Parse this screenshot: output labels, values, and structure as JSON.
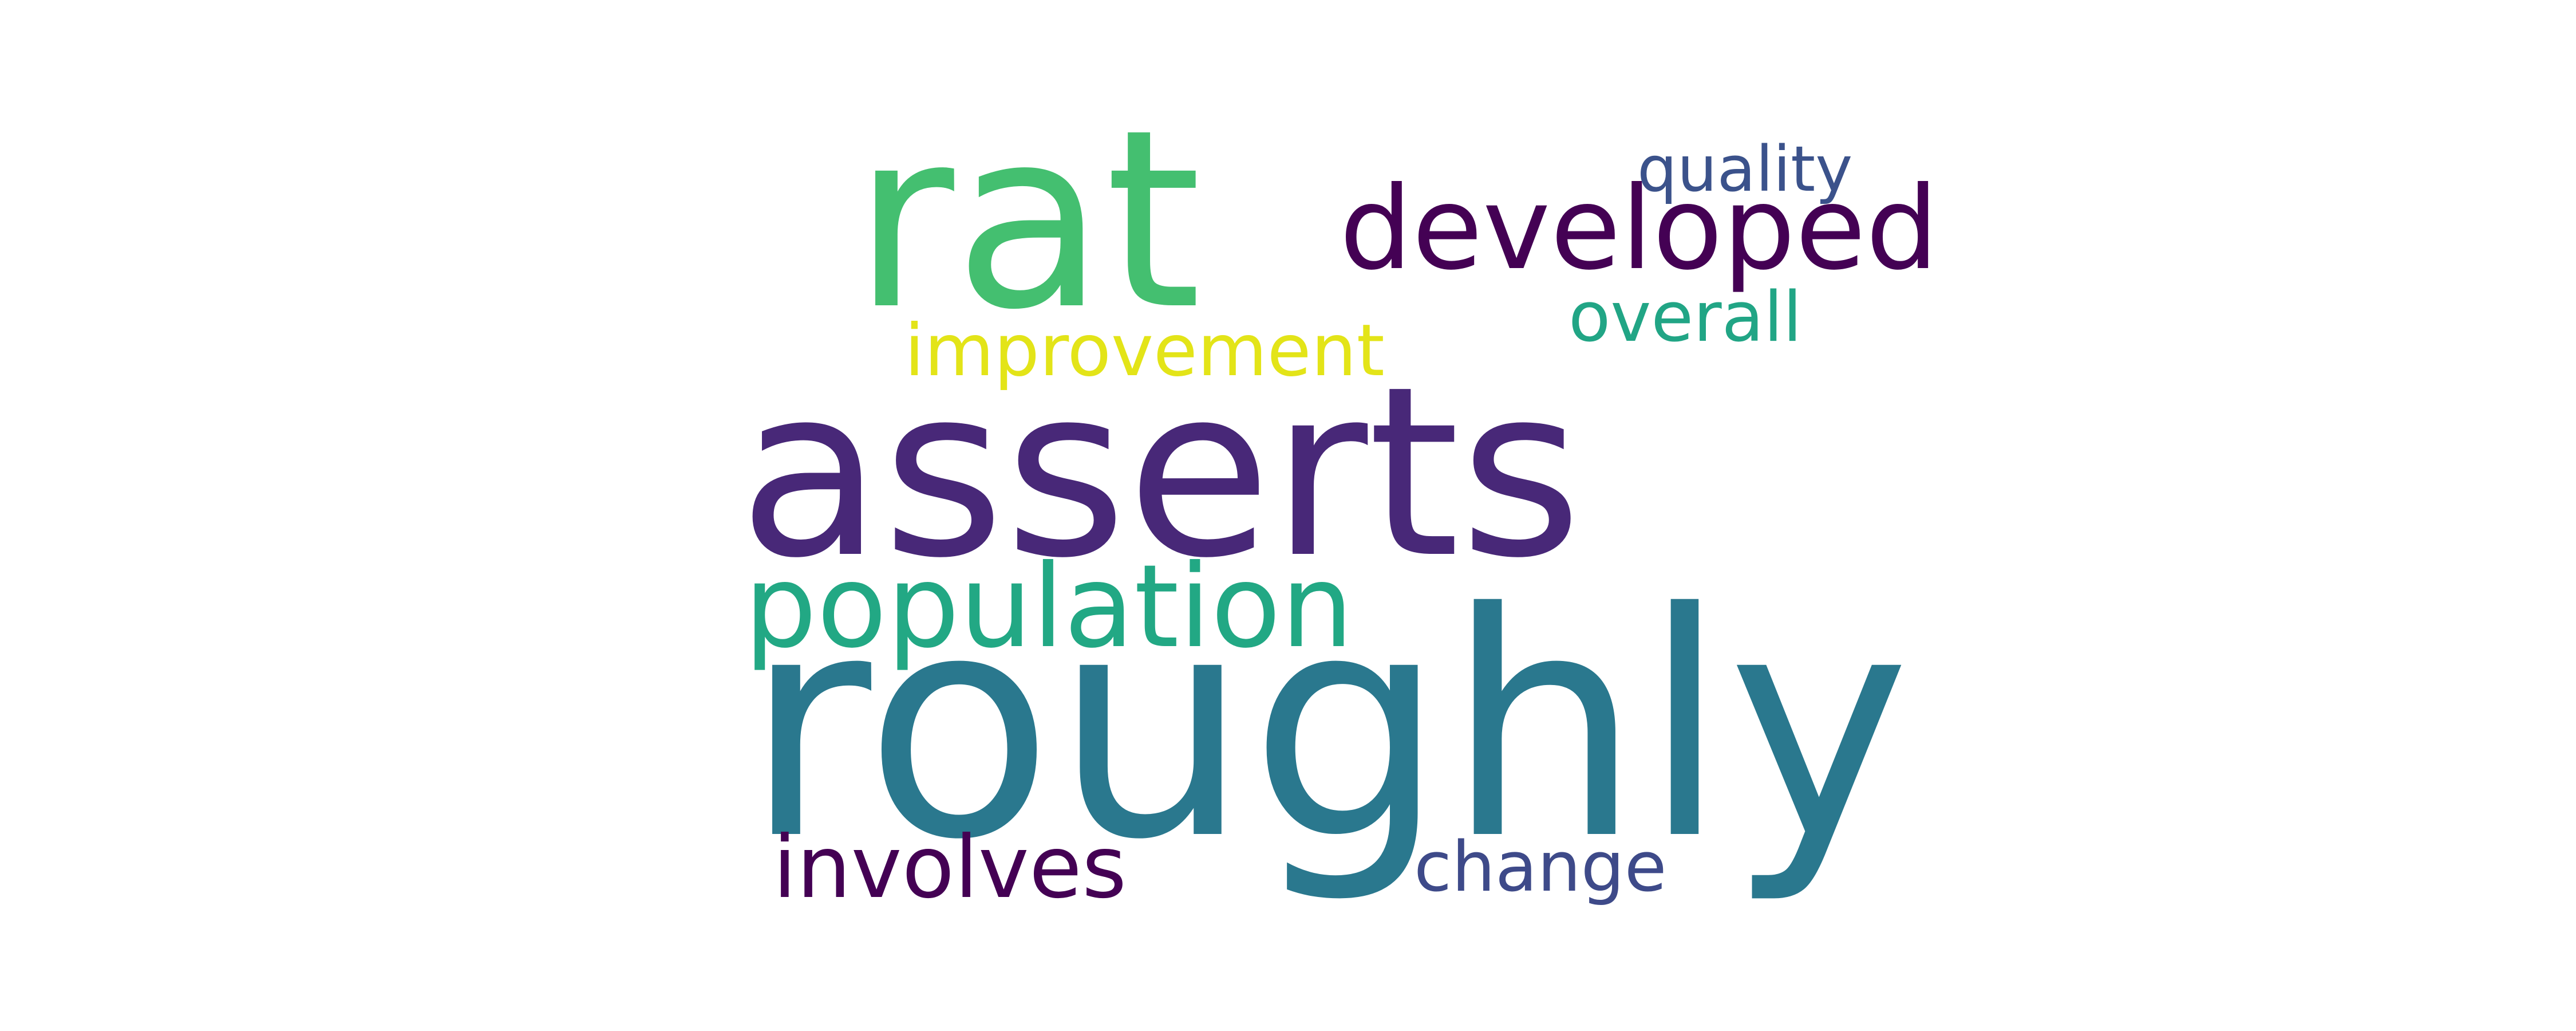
{
  "cloud": {
    "background": "#ffffff",
    "words": [
      {
        "id": "rat",
        "text": "rat",
        "color": "#44bf70"
      },
      {
        "id": "developed",
        "text": "developed",
        "color": "#440154"
      },
      {
        "id": "quality",
        "text": "quality",
        "color": "#3b528b"
      },
      {
        "id": "overall",
        "text": "overall",
        "color": "#21a585"
      },
      {
        "id": "improvement",
        "text": "improvement",
        "color": "#e3e418"
      },
      {
        "id": "asserts",
        "text": "asserts",
        "color": "#482878"
      },
      {
        "id": "population",
        "text": "population",
        "color": "#22a884"
      },
      {
        "id": "roughly",
        "text": "roughly",
        "color": "#2a788e"
      },
      {
        "id": "involves",
        "text": "involves",
        "color": "#440154"
      },
      {
        "id": "change",
        "text": "change",
        "color": "#3e4a89"
      }
    ]
  }
}
